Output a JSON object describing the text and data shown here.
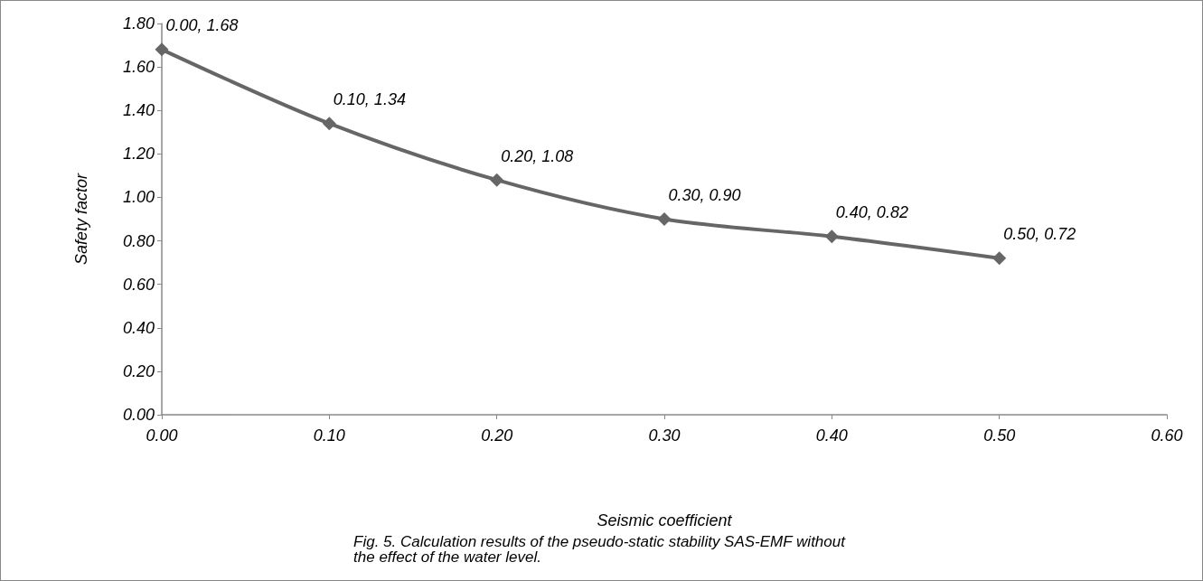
{
  "chart_data": {
    "type": "line",
    "xlabel": "Seismic coefficient",
    "ylabel": "Safety factor",
    "annotations": [
      "Fig. 5. Calculation results of the pseudo-static stability SAS-EMF without the effect of the water level."
    ],
    "x": [
      0,
      0.1,
      0.2,
      0.3,
      0.4,
      0.5
    ],
    "series": [
      {
        "color": "#666666",
        "values": [
          1.68,
          1.34,
          1.08,
          0.9,
          0.82,
          0.72
        ],
        "value_labels": [
          "0.00, 1.68",
          "0.10, 1.34",
          "0.20, 1.08",
          "0.30, 0.90",
          "0.40, 0.82",
          "0.50, 0.72"
        ]
      }
    ],
    "xlim": [
      0,
      0.6
    ],
    "xticks": [
      {
        "value": 0,
        "label": "0.00"
      },
      {
        "value": 0.1,
        "label": "0.10"
      },
      {
        "value": 0.2,
        "label": "0.20"
      },
      {
        "value": 0.3,
        "label": "0.30"
      },
      {
        "value": 0.4,
        "label": "0.40"
      },
      {
        "value": 0.5,
        "label": "0.50"
      },
      {
        "value": 0.6,
        "label": "0.60"
      }
    ],
    "ylim": [
      0,
      1.8
    ],
    "yticks": [
      {
        "value": 0,
        "label": "0.00"
      },
      {
        "value": 0.2,
        "label": "0.20"
      },
      {
        "value": 0.4,
        "label": "0.40"
      },
      {
        "value": 0.6,
        "label": "0.60"
      },
      {
        "value": 0.8,
        "label": "0.80"
      },
      {
        "value": 1,
        "label": "1.00"
      },
      {
        "value": 1.2,
        "label": "1.20"
      },
      {
        "value": 1.4,
        "label": "1.40"
      },
      {
        "value": 1.6,
        "label": "1.60"
      },
      {
        "value": 1.8,
        "label": "1.80"
      }
    ],
    "grid": false,
    "marker": "diamond",
    "line_style": "solid"
  }
}
